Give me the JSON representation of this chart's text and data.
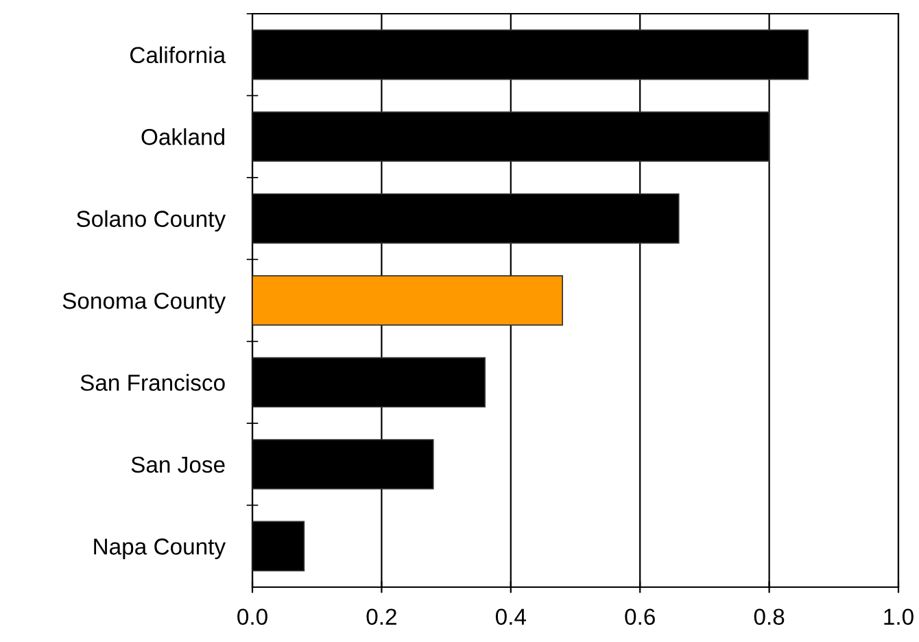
{
  "chart_data": {
    "type": "bar",
    "orientation": "horizontal",
    "categories": [
      "California",
      "Oakland",
      "Solano County",
      "Sonoma County",
      "San Francisco",
      "San Jose",
      "Napa County"
    ],
    "values": [
      0.86,
      0.8,
      0.66,
      0.48,
      0.36,
      0.28,
      0.08
    ],
    "colors": [
      "#000000",
      "#000000",
      "#000000",
      "#ff9900",
      "#000000",
      "#000000",
      "#000000"
    ],
    "xlim": [
      0,
      1
    ],
    "xticks": [
      {
        "value": 0,
        "label": "0.0"
      },
      0.2,
      0.4,
      0.6,
      0.8,
      {
        "value": 1,
        "label": "1.0"
      }
    ],
    "grid": "x"
  }
}
